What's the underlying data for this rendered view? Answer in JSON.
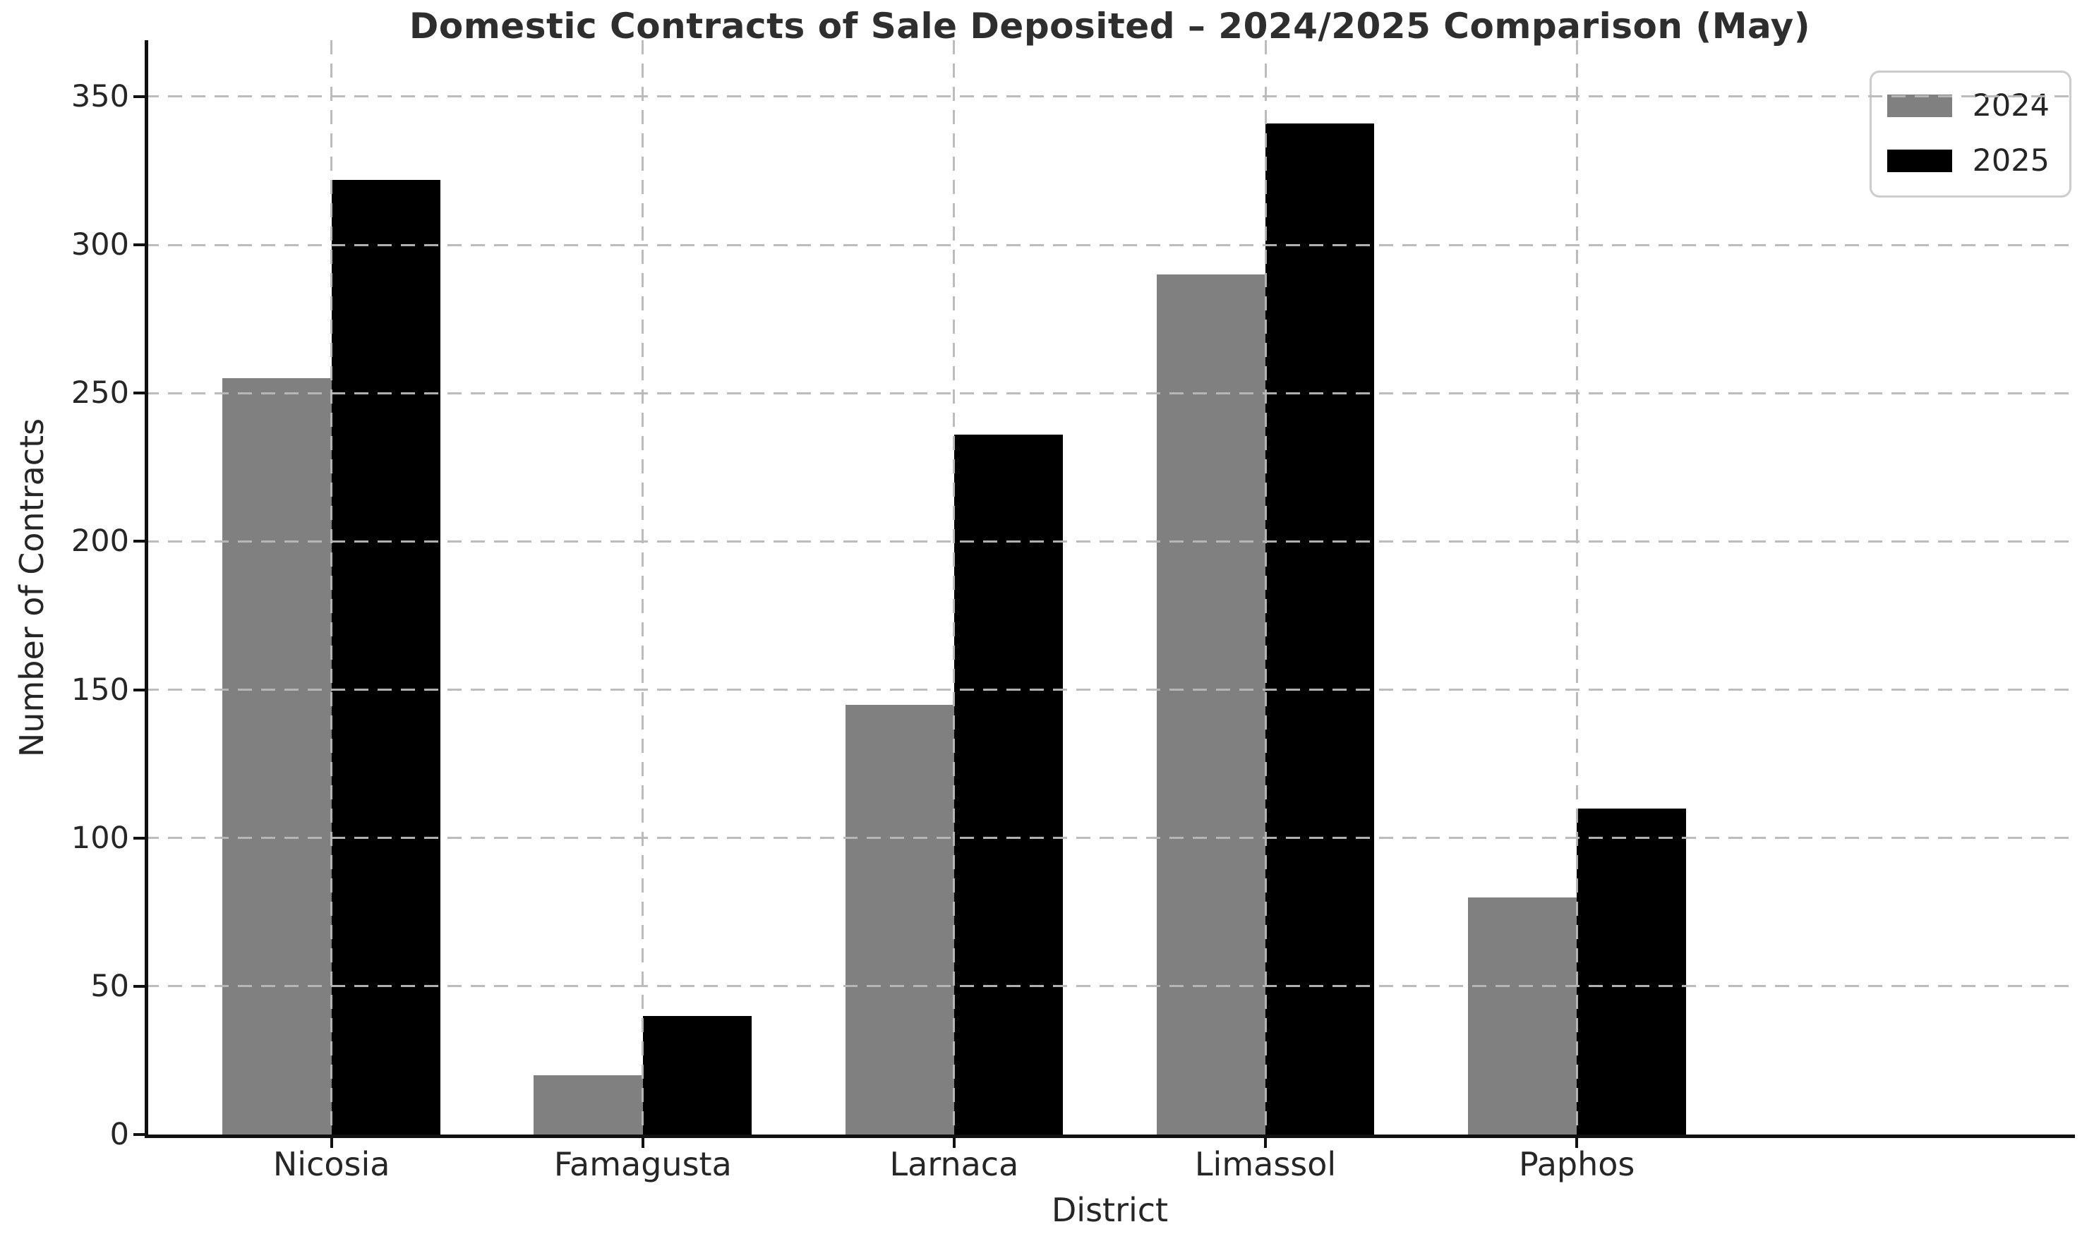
{
  "chart_data": {
    "type": "bar",
    "title": "Domestic Contracts of Sale Deposited – 2024/2025 Comparison (May)",
    "xlabel": "District",
    "ylabel": "Number of Contracts",
    "categories": [
      "Nicosia",
      "Famagusta",
      "Larnaca",
      "Limassol",
      "Paphos"
    ],
    "series": [
      {
        "name": "2024",
        "color": "#808080",
        "values": [
          255,
          20,
          145,
          290,
          80
        ]
      },
      {
        "name": "2025",
        "color": "#000000",
        "values": [
          322,
          40,
          236,
          341,
          110
        ]
      }
    ],
    "ylim": [
      0,
      369
    ],
    "yticks": [
      0,
      50,
      100,
      150,
      200,
      250,
      300,
      350
    ],
    "bar_width_fraction": 0.35,
    "grid": "dashed, horizontal and vertical, drawn over bars",
    "legend_position": "top-right"
  },
  "colors": {
    "background": "#ffffff",
    "bar_2024": "#808080",
    "bar_2025": "#000000",
    "grid": "#b9b9b9",
    "spine": "#111111",
    "text": "#262626",
    "legend_border": "#cccccc"
  }
}
